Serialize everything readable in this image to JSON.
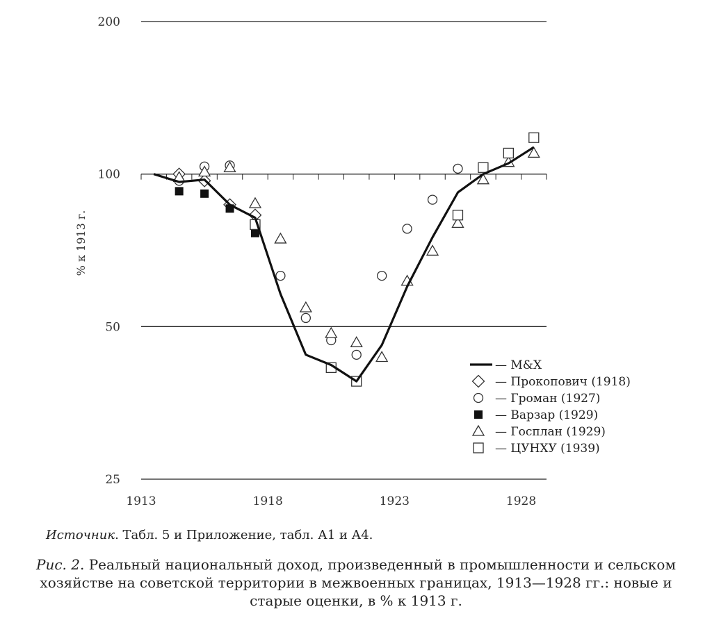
{
  "chart_data": {
    "type": "line",
    "ylabel": "% к 1913 г.",
    "y_scale": "log",
    "ylim": [
      25,
      200
    ],
    "yticks": [
      200,
      100,
      50,
      25
    ],
    "xlim": [
      1913,
      1928
    ],
    "xticks": [
      1913,
      1918,
      1923,
      1928
    ],
    "grid_y": [
      200,
      100,
      50,
      25
    ],
    "legend_position": "lower-right",
    "series": [
      {
        "name": "М&Х",
        "marker": "line",
        "points": [
          [
            1913.5,
            100
          ],
          [
            1914.5,
            96.5
          ],
          [
            1915.5,
            97.5
          ],
          [
            1916.5,
            87
          ],
          [
            1917.5,
            82
          ],
          [
            1918.5,
            58
          ],
          [
            1919.5,
            44
          ],
          [
            1920.5,
            42
          ],
          [
            1921.5,
            39
          ],
          [
            1922.5,
            46
          ],
          [
            1923.5,
            60
          ],
          [
            1924.5,
            75
          ],
          [
            1925.5,
            92
          ],
          [
            1926.5,
            100
          ],
          [
            1927.5,
            105
          ],
          [
            1928.5,
            113
          ]
        ]
      },
      {
        "name": "Прокопович (1918)",
        "marker": "diamond",
        "points": [
          [
            1914.5,
            100
          ],
          [
            1915.5,
            97
          ],
          [
            1916.5,
            87
          ],
          [
            1917.5,
            83
          ]
        ]
      },
      {
        "name": "Громан (1927)",
        "marker": "circle",
        "points": [
          [
            1914.5,
            97
          ],
          [
            1915.5,
            103.5
          ],
          [
            1916.5,
            104
          ],
          [
            1918.5,
            63
          ],
          [
            1919.5,
            52
          ],
          [
            1920.5,
            47
          ],
          [
            1921.5,
            44
          ],
          [
            1922.5,
            63
          ],
          [
            1923.5,
            78
          ],
          [
            1924.5,
            89
          ],
          [
            1925.5,
            102.5
          ]
        ]
      },
      {
        "name": "Варзар (1929)",
        "marker": "filled-square",
        "points": [
          [
            1914.5,
            92.5
          ],
          [
            1915.5,
            91.5
          ],
          [
            1916.5,
            85.5
          ],
          [
            1917.5,
            76.5
          ]
        ]
      },
      {
        "name": "Госплан (1929)",
        "marker": "triangle",
        "points": [
          [
            1914.5,
            98.5
          ],
          [
            1915.5,
            101
          ],
          [
            1916.5,
            103
          ],
          [
            1917.5,
            87.5
          ],
          [
            1918.5,
            74.5
          ],
          [
            1919.5,
            54.5
          ],
          [
            1920.5,
            48.5
          ],
          [
            1921.5,
            46.5
          ],
          [
            1922.5,
            43.5
          ],
          [
            1923.5,
            61.5
          ],
          [
            1924.5,
            70.5
          ],
          [
            1925.5,
            80
          ],
          [
            1926.5,
            97.5
          ],
          [
            1927.5,
            105.5
          ],
          [
            1928.5,
            110
          ]
        ]
      },
      {
        "name": "ЦУНХУ (1939)",
        "marker": "square",
        "points": [
          [
            1917.5,
            79.5
          ],
          [
            1920.5,
            41.5
          ],
          [
            1921.5,
            39
          ],
          [
            1925.5,
            83
          ],
          [
            1926.5,
            103
          ],
          [
            1927.5,
            110
          ],
          [
            1928.5,
            118
          ]
        ]
      }
    ]
  },
  "source": {
    "label": "Источник",
    "text": ". Табл. 5 и Приложение, табл. А1 и А4."
  },
  "caption": {
    "label": "Рис. 2",
    "text": ". Реальный национальный доход, произведенный в промышленности и сельском хозяйстве на советской территории в межвоенных границах, 1913—1928 гг.: новые и старые оценки, в % к 1913 г."
  }
}
